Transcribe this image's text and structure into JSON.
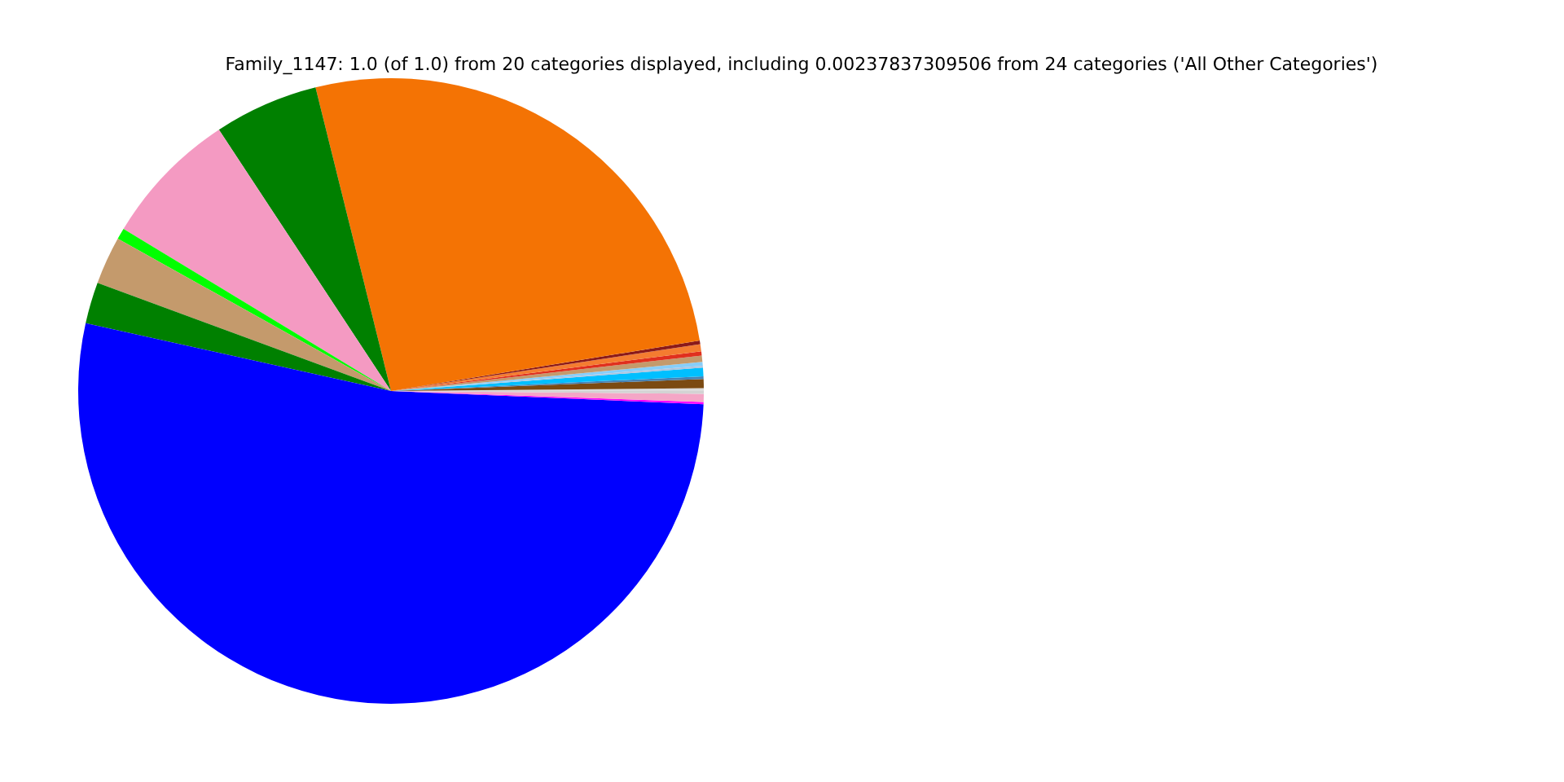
{
  "chart_data": {
    "type": "pie",
    "title": "Family_1147: 1.0 (of 1.0) from 20 categories displayed, including 0.00237837309506 from 24 categories ('All Other Categories')",
    "categories": [
      null,
      null,
      null,
      null,
      null,
      null,
      null,
      null,
      null,
      null,
      null,
      null,
      null,
      null,
      null,
      null,
      null,
      null,
      null,
      null
    ],
    "values": [
      0.14,
      0.47,
      0.14,
      0.44,
      0.1,
      0.19,
      0.33,
      0.22,
      0.36,
      0.19,
      26.3,
      5.39,
      7.06,
      0.58,
      2.47,
      2.14,
      52.81,
      0.11,
      0.42,
      0.14
    ],
    "colors": [
      "#dcdcdc",
      "#7b4a12",
      "#4682b4",
      "#00bfff",
      "#b0c4de",
      "#87cefa",
      "#c49a6c",
      "#e0301e",
      "#f47c30",
      "#8b1a1a",
      "#f47304",
      "#008000",
      "#f49ac2",
      "#00ff00",
      "#c49a6c",
      "#008000",
      "#0000ff",
      "#ff00ff",
      "#f4a6c6",
      "#d3d3d3"
    ]
  }
}
